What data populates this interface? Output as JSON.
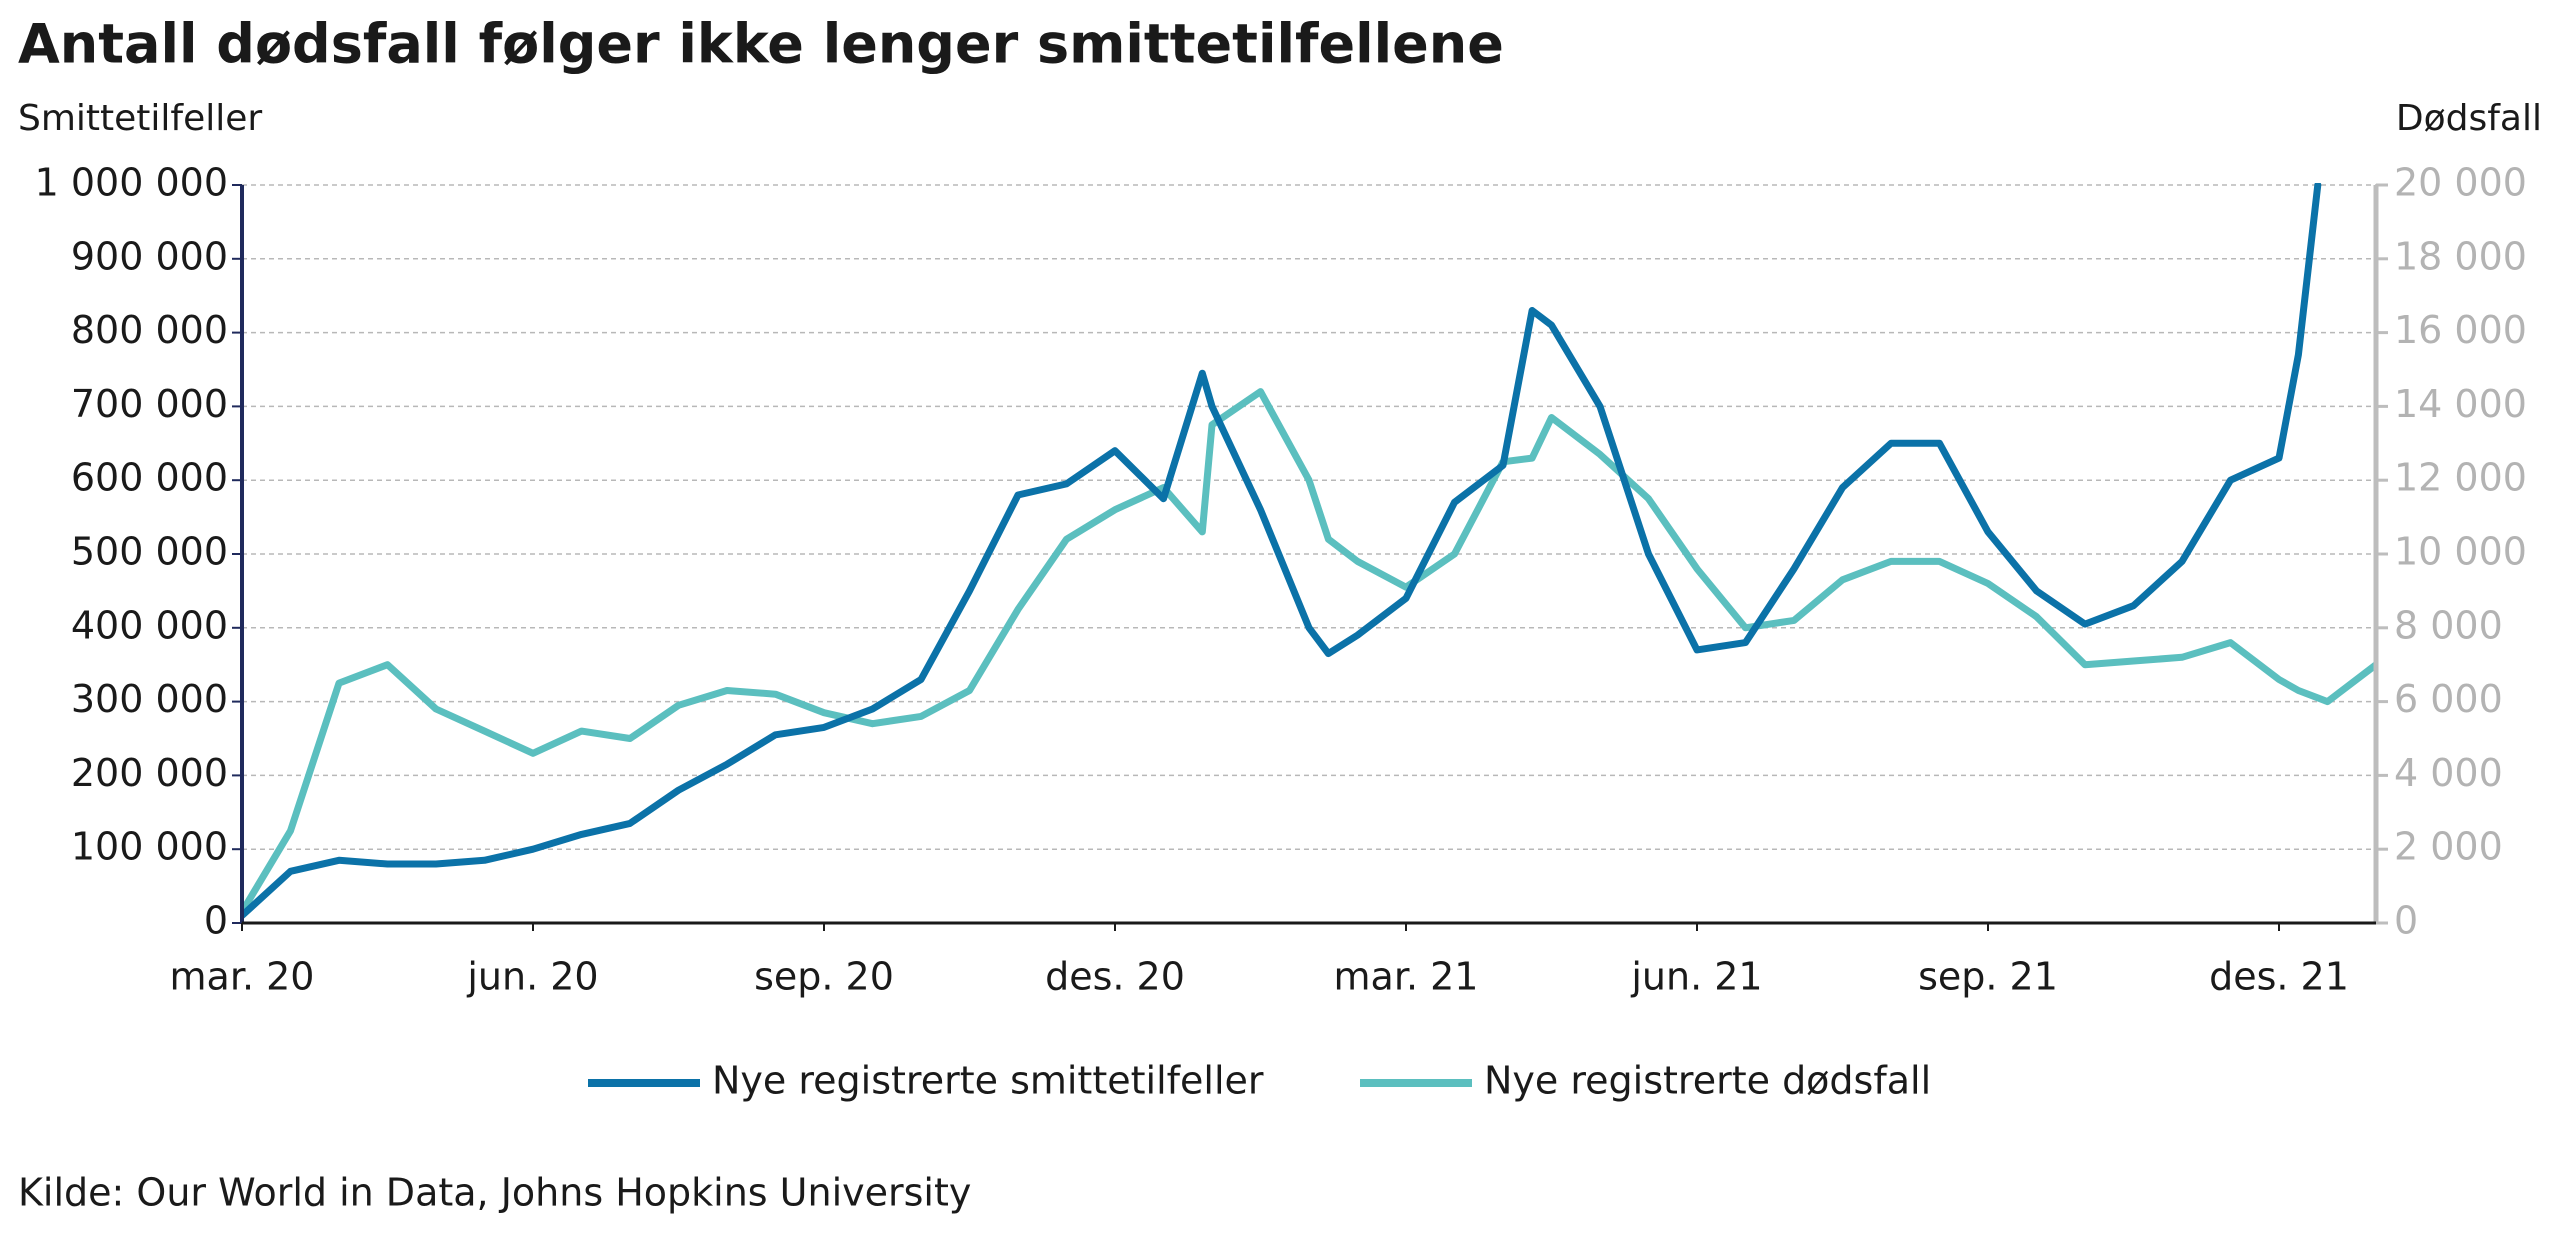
{
  "chart_data": {
    "type": "line",
    "title": "Antall dødsfall følger ikke lenger smittetilfellene",
    "y_label": "Smittetilfeller",
    "y2_label": "Dødsfall",
    "source": "Kilde: Our World in Data, Johns Hopkins University",
    "x": [
      0,
      0.5,
      1,
      1.5,
      2,
      2.5,
      3,
      3.5,
      4,
      4.5,
      5,
      5.5,
      6,
      6.5,
      7,
      7.5,
      8,
      8.5,
      9,
      9.5,
      9.9,
      10,
      10.5,
      11,
      11.2,
      11.5,
      12,
      12.5,
      13,
      13.3,
      13.5,
      14,
      14.5,
      15,
      15.5,
      16,
      16.5,
      17,
      17.5,
      18,
      18.5,
      19,
      19.5,
      20,
      20.5,
      21,
      21.2,
      21.4,
      21.5,
      22
    ],
    "xlim": [
      0,
      22
    ],
    "xticks": [
      {
        "value": 0,
        "label": "mar. 20"
      },
      {
        "value": 3,
        "label": "jun. 20"
      },
      {
        "value": 6,
        "label": "sep. 20"
      },
      {
        "value": 9,
        "label": "des. 20"
      },
      {
        "value": 12,
        "label": "mar. 21"
      },
      {
        "value": 15,
        "label": "jun. 21"
      },
      {
        "value": 18,
        "label": "sep. 21"
      },
      {
        "value": 21,
        "label": "des. 21"
      }
    ],
    "ylim": [
      0,
      1000000
    ],
    "yticks": [
      0,
      {
        "value": 100000,
        "label": "100 000"
      },
      {
        "value": 200000,
        "label": "200 000"
      },
      {
        "value": 300000,
        "label": "300 000"
      },
      {
        "value": 400000,
        "label": "400 000"
      },
      {
        "value": 500000,
        "label": "500 000"
      },
      {
        "value": 600000,
        "label": "600 000"
      },
      {
        "value": 700000,
        "label": "700 000"
      },
      {
        "value": 800000,
        "label": "800 000"
      },
      {
        "value": 900000,
        "label": "900 000"
      },
      {
        "value": 1000000,
        "label": "1 000 000"
      }
    ],
    "y2lim": [
      0,
      20000
    ],
    "y2ticks": [
      0,
      {
        "value": 2000,
        "label": "2 000"
      },
      {
        "value": 4000,
        "label": "4 000"
      },
      {
        "value": 6000,
        "label": "6 000"
      },
      {
        "value": 8000,
        "label": "8 000"
      },
      {
        "value": 10000,
        "label": "10 000"
      },
      {
        "value": 12000,
        "label": "12 000"
      },
      {
        "value": 14000,
        "label": "14 000"
      },
      {
        "value": 16000,
        "label": "16 000"
      },
      {
        "value": 18000,
        "label": "18 000"
      },
      {
        "value": 20000,
        "label": "20 000"
      }
    ],
    "grid": true,
    "series": [
      {
        "name": "Nye registrerte smittetilfeller",
        "color": "#0b72a8",
        "values": [
          10000,
          70000,
          85000,
          80000,
          80000,
          85000,
          100000,
          120000,
          135000,
          180000,
          215000,
          255000,
          265000,
          290000,
          330000,
          450000,
          580000,
          595000,
          640000,
          575000,
          745000,
          700000,
          560000,
          400000,
          365000,
          390000,
          440000,
          570000,
          620000,
          830000,
          810000,
          700000,
          500000,
          370000,
          380000,
          480000,
          590000,
          650000,
          650000,
          530000,
          450000,
          405000,
          430000,
          490000,
          600000,
          630000,
          770000,
          1000000,
          null,
          null
        ]
      },
      {
        "name": "Nye registrerte dødsfall",
        "color": "#5bbfbf",
        "axis": "y2",
        "values": [
          300,
          2500,
          6500,
          7000,
          5800,
          5200,
          4600,
          5200,
          5000,
          5900,
          6300,
          6200,
          5700,
          5400,
          5600,
          6300,
          8500,
          10400,
          11200,
          11800,
          10600,
          13500,
          14400,
          12000,
          10400,
          9800,
          9100,
          10000,
          12500,
          12600,
          13700,
          12700,
          11500,
          9600,
          8000,
          8200,
          9300,
          9800,
          9800,
          9200,
          8300,
          7000,
          7100,
          7200,
          7600,
          6600,
          6300,
          6100,
          6000,
          7000
        ]
      }
    ]
  }
}
